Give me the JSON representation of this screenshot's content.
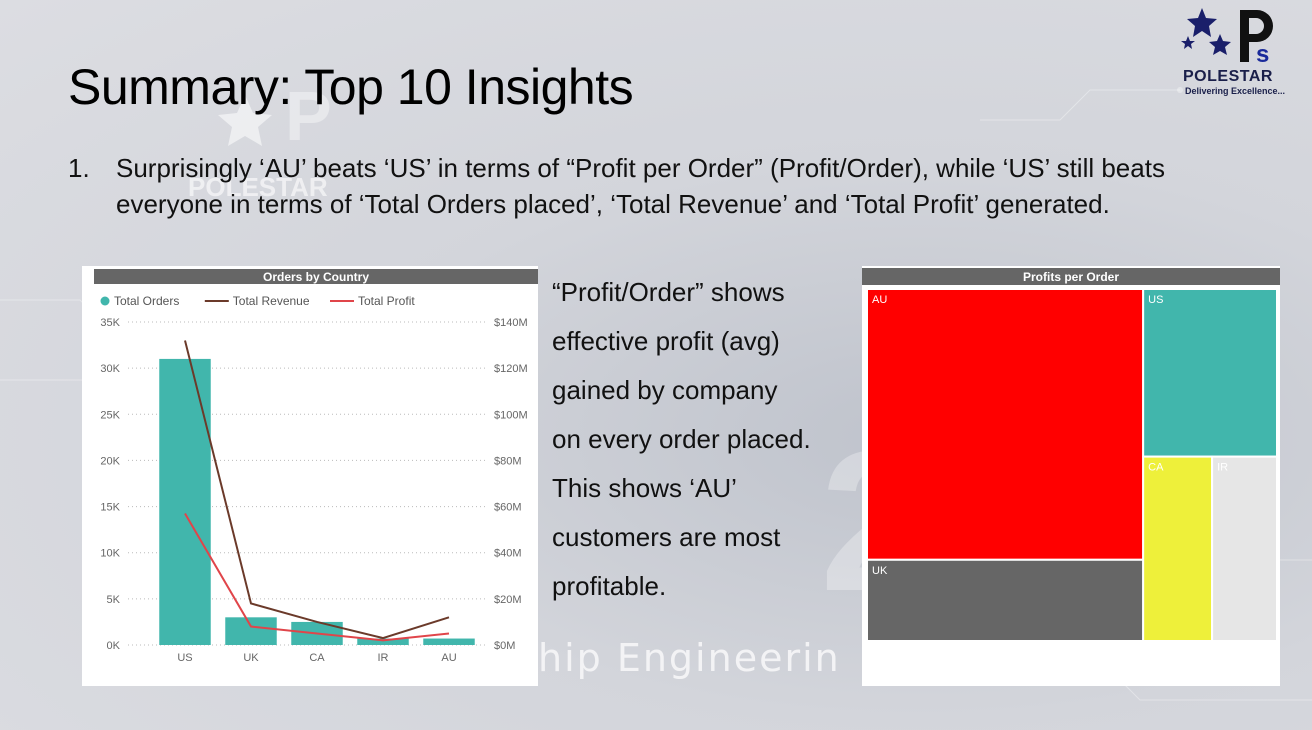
{
  "slide": {
    "title": "Summary: Top 10 Insights",
    "bullet_number": "1.",
    "bullet_text": "Surprisingly ‘AU’ beats ‘US’ in terms of “Profit per Order” (Profit/Order), while ‘US’ still beats everyone in terms of ‘Total Orders placed’, ‘Total Revenue’ and ‘Total Profit’ generated.",
    "side_text_lines": [
      "“Profit/Order” shows",
      " effective profit (avg)",
      " gained by company",
      " on every order placed.",
      " This shows ‘AU’",
      " customers are most",
      " profitable."
    ],
    "banner_text": "hip Engineerin",
    "watermark_text": "POLESTAR"
  },
  "logo": {
    "letters": "Ps",
    "brand": "POLESTAR",
    "tagline": "Delivering Excellence..."
  },
  "colors": {
    "teal": "#41b6ac",
    "revenue": "#6b3a2a",
    "profit": "#e0454a",
    "header": "#666666",
    "au": "#ff0000",
    "uk": "#666666",
    "ca": "#eef03a",
    "ir": "#e6e6e6"
  },
  "chart_data": [
    {
      "type": "bar",
      "title": "Orders by Country",
      "categories": [
        "US",
        "UK",
        "CA",
        "IR",
        "AU"
      ],
      "series": [
        {
          "name": "Total Orders",
          "type": "bar",
          "axis": "left",
          "values": [
            31000,
            3000,
            2500,
            700,
            700
          ]
        },
        {
          "name": "Total Revenue",
          "type": "line",
          "axis": "right",
          "values": [
            132000000,
            18000000,
            10000000,
            3000000,
            12000000
          ]
        },
        {
          "name": "Total Profit",
          "type": "line",
          "axis": "right",
          "values": [
            57000000,
            8000000,
            5000000,
            2000000,
            5000000
          ]
        }
      ],
      "y_left": {
        "ylim": [
          0,
          35000
        ],
        "ticks": [
          "0K",
          "5K",
          "10K",
          "15K",
          "20K",
          "25K",
          "30K",
          "35K"
        ]
      },
      "y_right": {
        "ylim": [
          0,
          140000000
        ],
        "ticks": [
          "$0M",
          "$20M",
          "$40M",
          "$60M",
          "$80M",
          "$100M",
          "$120M",
          "$140M"
        ]
      },
      "legend": "top-left",
      "grid": true
    },
    {
      "type": "treemap",
      "title": "Profits per Order",
      "items": [
        {
          "label": "AU",
          "value": 1.0
        },
        {
          "label": "UK",
          "value": 0.3
        },
        {
          "label": "US",
          "value": 0.3
        },
        {
          "label": "CA",
          "value": 0.17
        },
        {
          "label": "IR",
          "value": 0.16
        }
      ]
    }
  ]
}
